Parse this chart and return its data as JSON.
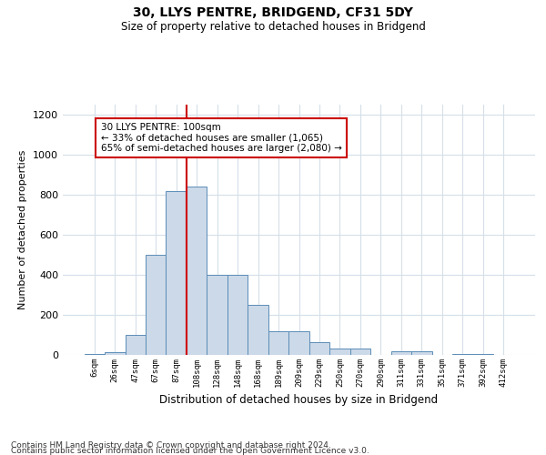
{
  "title": "30, LLYS PENTRE, BRIDGEND, CF31 5DY",
  "subtitle": "Size of property relative to detached houses in Bridgend",
  "xlabel": "Distribution of detached houses by size in Bridgend",
  "ylabel": "Number of detached properties",
  "bar_labels": [
    "6sqm",
    "26sqm",
    "47sqm",
    "67sqm",
    "87sqm",
    "108sqm",
    "128sqm",
    "148sqm",
    "168sqm",
    "189sqm",
    "209sqm",
    "229sqm",
    "250sqm",
    "270sqm",
    "290sqm",
    "311sqm",
    "331sqm",
    "351sqm",
    "371sqm",
    "392sqm",
    "412sqm"
  ],
  "bar_values": [
    5,
    15,
    100,
    500,
    820,
    840,
    400,
    400,
    250,
    120,
    120,
    65,
    30,
    30,
    0,
    20,
    20,
    0,
    5,
    5,
    0
  ],
  "bar_color": "#ccd9e8",
  "bar_edge_color": "#5b8db8",
  "vline_x": 4.5,
  "vline_color": "#cc0000",
  "annotation_line1": "30 LLYS PENTRE: 100sqm",
  "annotation_line2": "← 33% of detached houses are smaller (1,065)",
  "annotation_line3": "65% of semi-detached houses are larger (2,080) →",
  "annotation_box_color": "#ffffff",
  "annotation_box_edge": "#cc0000",
  "ylim": [
    0,
    1250
  ],
  "yticks": [
    0,
    200,
    400,
    600,
    800,
    1000,
    1200
  ],
  "footer_line1": "Contains HM Land Registry data © Crown copyright and database right 2024.",
  "footer_line2": "Contains public sector information licensed under the Open Government Licence v3.0.",
  "background_color": "#ffffff",
  "grid_color": "#d5dfe8",
  "title_fontsize": 10,
  "subtitle_fontsize": 8.5,
  "ylabel_fontsize": 8,
  "xlabel_fontsize": 8.5,
  "footer_fontsize": 6.5,
  "annotation_fontsize": 7.5,
  "ytick_fontsize": 8,
  "xtick_fontsize": 6.5
}
